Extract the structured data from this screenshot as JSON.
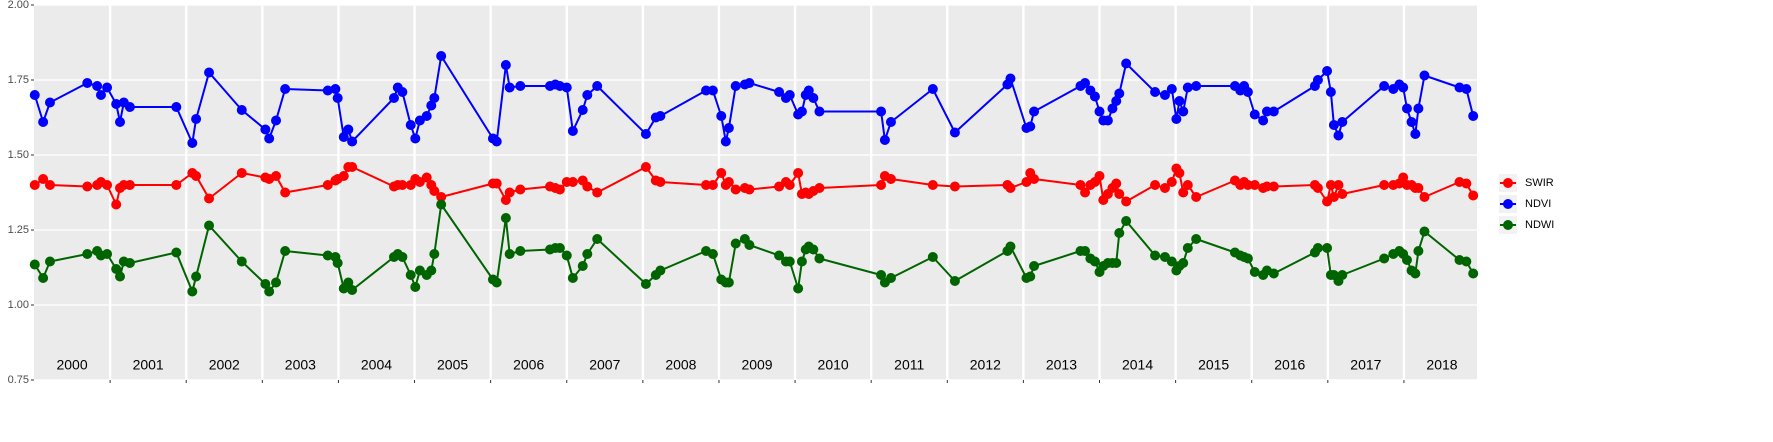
{
  "chart_data": {
    "type": "line",
    "x": [
      2000.01,
      2000.12,
      2000.21,
      2000.7,
      2000.83,
      2000.88,
      2000.96,
      2001.08,
      2001.13,
      2001.18,
      2001.26,
      2001.87,
      2002.08,
      2002.13,
      2002.3,
      2002.73,
      2003.04,
      2003.09,
      2003.18,
      2003.3,
      2003.86,
      2003.96,
      2003.99,
      2004.07,
      2004.13,
      2004.18,
      2004.73,
      2004.78,
      2004.84,
      2004.95,
      2005.01,
      2005.07,
      2005.16,
      2005.22,
      2005.26,
      2005.35,
      2006.03,
      2006.08,
      2006.2,
      2006.25,
      2006.39,
      2006.78,
      2006.85,
      2006.91,
      2007.0,
      2007.08,
      2007.21,
      2007.27,
      2007.4,
      2008.04,
      2008.17,
      2008.23,
      2008.83,
      2008.92,
      2009.03,
      2009.09,
      2009.13,
      2009.22,
      2009.34,
      2009.4,
      2009.79,
      2009.88,
      2009.93,
      2010.04,
      2010.09,
      2010.14,
      2010.18,
      2010.24,
      2010.32,
      2011.13,
      2011.18,
      2011.26,
      2011.81,
      2012.1,
      2012.79,
      2012.83,
      2013.04,
      2013.09,
      2013.14,
      2013.75,
      2013.81,
      2013.88,
      2013.94,
      2014.0,
      2014.05,
      2014.11,
      2014.17,
      2014.22,
      2014.26,
      2014.35,
      2014.73,
      2014.86,
      2014.95,
      2015.01,
      2015.05,
      2015.1,
      2015.16,
      2015.27,
      2015.78,
      2015.85,
      2015.9,
      2015.95,
      2016.04,
      2016.15,
      2016.2,
      2016.29,
      2016.83,
      2016.87,
      2016.99,
      2017.04,
      2017.08,
      2017.14,
      2017.19,
      2017.74,
      2017.86,
      2017.94,
      2017.99,
      2018.04,
      2018.1,
      2018.15,
      2018.19,
      2018.27,
      2018.73,
      2018.82,
      2018.91
    ],
    "series": [
      {
        "name": "SWIR",
        "color": "#ff0000",
        "values": [
          1.4,
          1.42,
          1.4,
          1.395,
          1.4,
          1.41,
          1.4,
          1.335,
          1.39,
          1.4,
          1.4,
          1.4,
          1.44,
          1.43,
          1.355,
          1.44,
          1.425,
          1.42,
          1.43,
          1.375,
          1.4,
          1.415,
          1.42,
          1.43,
          1.46,
          1.46,
          1.395,
          1.4,
          1.4,
          1.4,
          1.42,
          1.41,
          1.425,
          1.4,
          1.38,
          1.36,
          1.405,
          1.405,
          1.35,
          1.375,
          1.385,
          1.395,
          1.39,
          1.385,
          1.41,
          1.41,
          1.415,
          1.395,
          1.375,
          1.46,
          1.415,
          1.41,
          1.4,
          1.4,
          1.44,
          1.4,
          1.41,
          1.385,
          1.39,
          1.385,
          1.395,
          1.41,
          1.4,
          1.44,
          1.37,
          1.375,
          1.37,
          1.38,
          1.39,
          1.4,
          1.43,
          1.42,
          1.4,
          1.395,
          1.4,
          1.39,
          1.41,
          1.44,
          1.42,
          1.4,
          1.375,
          1.4,
          1.41,
          1.43,
          1.35,
          1.37,
          1.39,
          1.405,
          1.37,
          1.345,
          1.4,
          1.39,
          1.41,
          1.455,
          1.44,
          1.375,
          1.4,
          1.36,
          1.415,
          1.4,
          1.41,
          1.4,
          1.4,
          1.39,
          1.395,
          1.395,
          1.4,
          1.39,
          1.345,
          1.4,
          1.36,
          1.4,
          1.37,
          1.4,
          1.4,
          1.405,
          1.425,
          1.4,
          1.4,
          1.39,
          1.39,
          1.36,
          1.41,
          1.405,
          1.365
        ]
      },
      {
        "name": "NDVI",
        "color": "#0000ff",
        "values": [
          1.7,
          1.61,
          1.675,
          1.74,
          1.73,
          1.7,
          1.725,
          1.67,
          1.61,
          1.675,
          1.66,
          1.66,
          1.54,
          1.62,
          1.775,
          1.65,
          1.585,
          1.555,
          1.615,
          1.72,
          1.715,
          1.72,
          1.69,
          1.56,
          1.585,
          1.545,
          1.69,
          1.725,
          1.71,
          1.6,
          1.555,
          1.615,
          1.63,
          1.665,
          1.69,
          1.83,
          1.555,
          1.545,
          1.8,
          1.725,
          1.73,
          1.73,
          1.735,
          1.73,
          1.725,
          1.58,
          1.65,
          1.7,
          1.73,
          1.57,
          1.625,
          1.63,
          1.715,
          1.715,
          1.63,
          1.545,
          1.59,
          1.73,
          1.735,
          1.74,
          1.71,
          1.69,
          1.7,
          1.635,
          1.645,
          1.7,
          1.715,
          1.69,
          1.645,
          1.645,
          1.55,
          1.61,
          1.72,
          1.575,
          1.735,
          1.755,
          1.59,
          1.595,
          1.645,
          1.73,
          1.74,
          1.715,
          1.695,
          1.645,
          1.615,
          1.615,
          1.655,
          1.68,
          1.705,
          1.805,
          1.71,
          1.7,
          1.72,
          1.62,
          1.68,
          1.645,
          1.725,
          1.73,
          1.73,
          1.715,
          1.73,
          1.71,
          1.635,
          1.615,
          1.645,
          1.645,
          1.73,
          1.75,
          1.78,
          1.71,
          1.6,
          1.565,
          1.61,
          1.73,
          1.72,
          1.735,
          1.725,
          1.655,
          1.61,
          1.57,
          1.655,
          1.765,
          1.725,
          1.72,
          1.63
        ]
      },
      {
        "name": "NDWI",
        "color": "#006400",
        "values": [
          1.135,
          1.09,
          1.145,
          1.17,
          1.18,
          1.165,
          1.17,
          1.12,
          1.095,
          1.145,
          1.14,
          1.175,
          1.045,
          1.095,
          1.265,
          1.145,
          1.07,
          1.045,
          1.075,
          1.18,
          1.165,
          1.16,
          1.14,
          1.055,
          1.075,
          1.05,
          1.16,
          1.17,
          1.16,
          1.1,
          1.06,
          1.115,
          1.1,
          1.115,
          1.17,
          1.335,
          1.085,
          1.075,
          1.29,
          1.17,
          1.18,
          1.185,
          1.19,
          1.19,
          1.165,
          1.09,
          1.13,
          1.17,
          1.22,
          1.07,
          1.1,
          1.115,
          1.18,
          1.17,
          1.085,
          1.075,
          1.075,
          1.205,
          1.22,
          1.2,
          1.165,
          1.145,
          1.145,
          1.055,
          1.145,
          1.185,
          1.195,
          1.185,
          1.155,
          1.1,
          1.075,
          1.09,
          1.16,
          1.08,
          1.18,
          1.195,
          1.09,
          1.095,
          1.13,
          1.18,
          1.18,
          1.155,
          1.145,
          1.11,
          1.13,
          1.14,
          1.14,
          1.14,
          1.24,
          1.28,
          1.165,
          1.16,
          1.145,
          1.115,
          1.13,
          1.14,
          1.19,
          1.22,
          1.175,
          1.165,
          1.16,
          1.155,
          1.11,
          1.1,
          1.115,
          1.105,
          1.175,
          1.19,
          1.19,
          1.1,
          1.1,
          1.08,
          1.1,
          1.155,
          1.17,
          1.18,
          1.17,
          1.15,
          1.115,
          1.105,
          1.18,
          1.245,
          1.15,
          1.145,
          1.105
        ]
      }
    ],
    "xlim": [
      2000,
      2018.96
    ],
    "xticks": [
      2001,
      2002,
      2003,
      2004,
      2005,
      2006,
      2007,
      2008,
      2009,
      2010,
      2011,
      2012,
      2013,
      2014,
      2015,
      2016,
      2017,
      2018
    ],
    "year_labels": [
      2000,
      2001,
      2002,
      2003,
      2004,
      2005,
      2006,
      2007,
      2008,
      2009,
      2010,
      2011,
      2012,
      2013,
      2014,
      2015,
      2016,
      2017,
      2018
    ],
    "ylim": [
      0.75,
      2.0
    ],
    "yticks": [
      {
        "value": 0.75,
        "label": "0.75"
      },
      {
        "value": 1.0,
        "label": "1.00"
      },
      {
        "value": 1.25,
        "label": "1.25"
      },
      {
        "value": 1.5,
        "label": "1.50"
      },
      {
        "value": 1.75,
        "label": "1.75"
      },
      {
        "value": 2.0,
        "label": "2.00"
      }
    ],
    "grid": true,
    "legend": "right"
  }
}
